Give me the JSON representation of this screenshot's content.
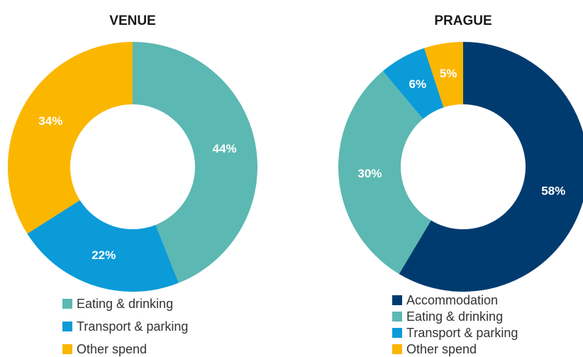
{
  "chart_data": [
    {
      "type": "pie",
      "title": "VENUE",
      "categories": [
        "Eating & drinking",
        "Transport & parking",
        "Other spend"
      ],
      "values": [
        44,
        22,
        34
      ],
      "value_labels": [
        "44%",
        "22%",
        "34%"
      ],
      "colors": [
        "#5cb8b2",
        "#0b9bd8",
        "#fbb600"
      ]
    },
    {
      "type": "pie",
      "title": "PRAGUE",
      "categories": [
        "Accommodation",
        "Eating & drinking",
        "Transport & parking",
        "Other spend"
      ],
      "values": [
        58,
        30,
        6,
        5
      ],
      "value_labels": [
        "58%",
        "30%",
        "6%",
        "5%"
      ],
      "colors": [
        "#003b6f",
        "#5cb8b2",
        "#0b9bd8",
        "#fbb600"
      ]
    }
  ]
}
